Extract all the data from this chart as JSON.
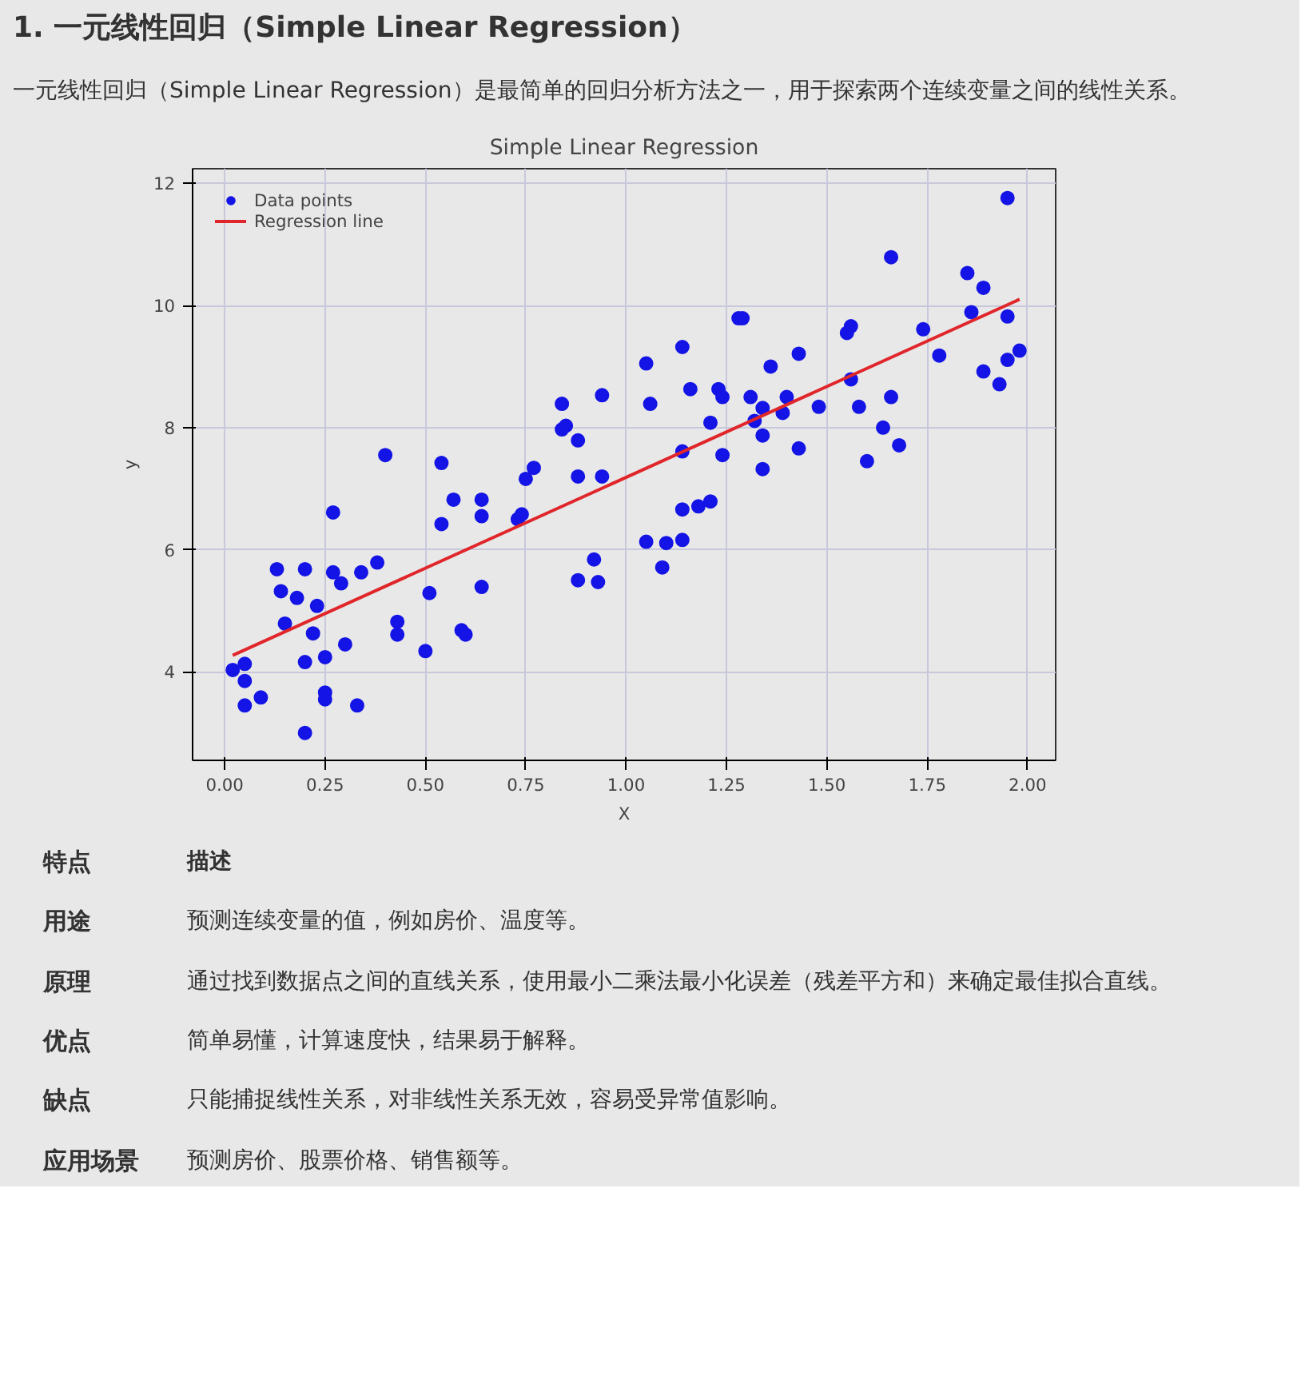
{
  "chart_data": {
    "type": "scatter",
    "title": "Simple Linear Regression",
    "xlabel": "X",
    "ylabel": "y",
    "annotations": [
      "1. 一元线性回归（Simple Linear Regression）",
      "一元线性回归（Simple Linear Regression）是最简单的回归分析方法之一，用于探索两个连续变量之间的线性关系。",
      "特点",
      "描述",
      "用途",
      "预测连续变量的值，例如房价、温度等。",
      "原理",
      "通过找到数据点之间的直线关系，使用最小二乘法最小化误差（残差平方和）来确定最佳拟合直线。",
      "优点",
      "简单易懂，计算速度快，结果易于解释。",
      "缺点",
      "只能捕捉线性关系，对非线性关系无效，容易受异常值影响。",
      "应用场景",
      "预测房价、股票价格、销售额等。"
    ],
    "xlim": [
      -0.08,
      2.07
    ],
    "ylim": [
      2.55,
      12.24
    ],
    "xticks": [
      {
        "value": 0,
        "label": "0.00"
      },
      {
        "value": 0.25,
        "label": "0.25"
      },
      {
        "value": 0.5,
        "label": "0.50"
      },
      {
        "value": 0.75,
        "label": "0.75"
      },
      {
        "value": 1,
        "label": "1.00"
      },
      {
        "value": 1.25,
        "label": "1.25"
      },
      {
        "value": 1.5,
        "label": "1.50"
      },
      {
        "value": 1.75,
        "label": "1.75"
      },
      {
        "value": 2,
        "label": "2.00"
      }
    ],
    "yticks": [
      4,
      6,
      8,
      10,
      12
    ],
    "grid": true,
    "legend": "top left",
    "series": [
      {
        "name": "Data points",
        "color": "#1414e6",
        "marker": "circle",
        "x": [
          0.02,
          0.05,
          0.05,
          0.05,
          0.09,
          0.13,
          0.14,
          0.15,
          0.18,
          0.2,
          0.2,
          0.2,
          0.22,
          0.23,
          0.25,
          0.25,
          0.25,
          0.27,
          0.27,
          0.29,
          0.3,
          0.33,
          0.34,
          0.38,
          0.4,
          0.43,
          0.43,
          0.5,
          0.51,
          0.54,
          0.54,
          0.57,
          0.59,
          0.6,
          0.64,
          0.64,
          0.64,
          0.73,
          0.74,
          0.75,
          0.77,
          0.88,
          0.94,
          0.88,
          0.92,
          0.93,
          0.84,
          0.94,
          0.85,
          0.84,
          0.88,
          1.05,
          1.06,
          1.14,
          1.16,
          1.23,
          1.24,
          1.21,
          1.28,
          1.29,
          1.31,
          1.34,
          1.32,
          1.34,
          1.36,
          1.4,
          1.39,
          1.43,
          1.43,
          1.48,
          1.14,
          1.24,
          1.34,
          1.55,
          1.56,
          1.56,
          1.58,
          1.66,
          1.64,
          1.68,
          1.6,
          1.66,
          1.74,
          1.78,
          1.85,
          1.89,
          1.86,
          1.95,
          1.95,
          1.89,
          1.93,
          1.95,
          1.98,
          1.05,
          1.1,
          1.14,
          1.09,
          1.14,
          1.18,
          1.21
        ],
        "values": [
          4.03,
          4.13,
          3.85,
          3.45,
          3.58,
          5.68,
          5.32,
          4.79,
          5.21,
          3.0,
          5.68,
          4.16,
          4.63,
          5.08,
          4.24,
          3.66,
          3.55,
          6.61,
          5.63,
          5.45,
          4.45,
          3.45,
          5.63,
          5.79,
          7.55,
          4.61,
          4.82,
          4.34,
          5.29,
          7.42,
          6.42,
          6.82,
          4.68,
          4.61,
          6.55,
          6.82,
          5.39,
          6.5,
          6.58,
          7.16,
          7.34,
          7.2,
          7.2,
          5.5,
          5.84,
          5.47,
          8.39,
          8.53,
          8.03,
          7.97,
          7.79,
          9.05,
          8.39,
          9.32,
          8.63,
          8.63,
          8.5,
          8.08,
          9.79,
          9.79,
          8.5,
          8.32,
          8.11,
          7.87,
          9.0,
          8.5,
          8.24,
          9.21,
          7.66,
          8.34,
          7.61,
          7.55,
          7.32,
          9.55,
          9.66,
          8.79,
          8.34,
          8.5,
          8.0,
          7.71,
          7.45,
          10.79,
          9.61,
          9.18,
          10.53,
          10.29,
          9.89,
          9.82,
          11.76,
          8.92,
          8.71,
          9.11,
          9.26,
          6.13,
          6.11,
          6.16,
          5.71,
          6.66,
          6.71,
          6.79
        ]
      },
      {
        "name": "Regression line",
        "type": "line",
        "color": "#e0262a",
        "marker": "none",
        "line_style": "solid",
        "x": [
          0.02,
          1.98
        ],
        "values": [
          4.27,
          10.1
        ]
      }
    ]
  }
}
